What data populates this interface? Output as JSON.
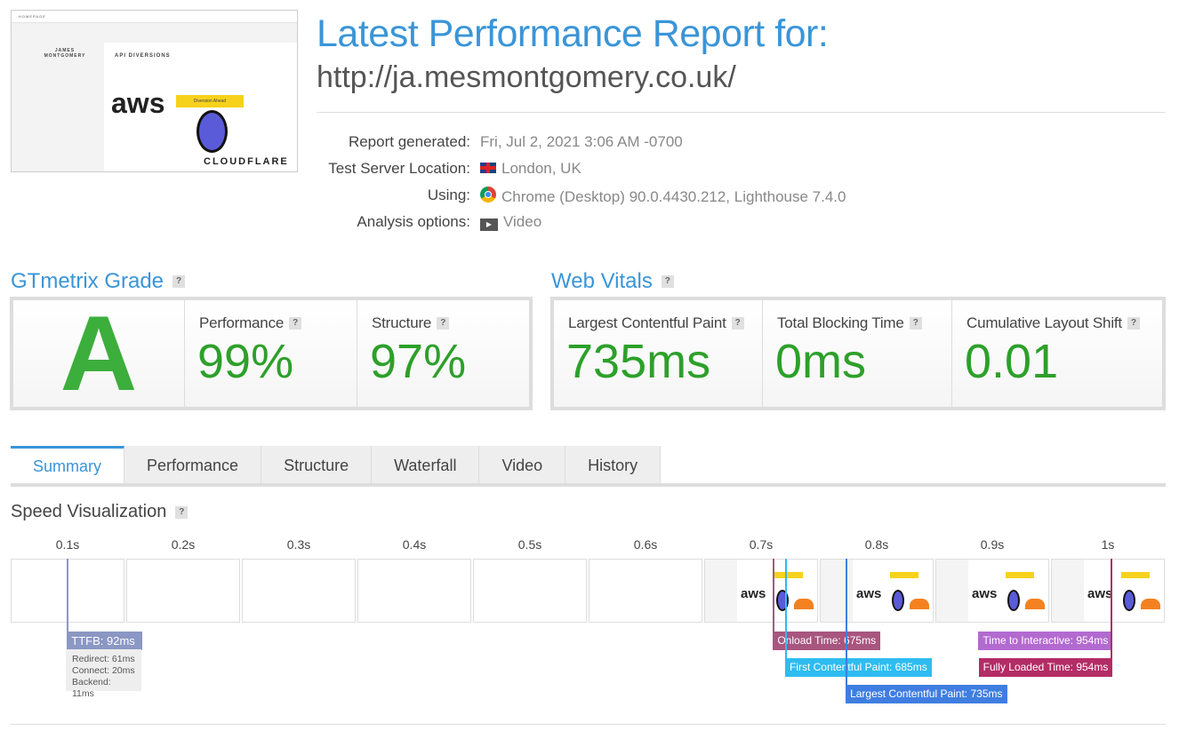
{
  "screenshot": {
    "nav": "HOMEPAGE",
    "author": "JAMES MONTGOMERY",
    "post_title": "API DIVERSIONS",
    "sign": "Diversion Ahead",
    "logo1": "aws",
    "logo2": "CLOUDFLARE"
  },
  "report": {
    "title": "Latest Performance Report for:",
    "url": "http://ja.mesmontgomery.co.uk/",
    "rows": [
      {
        "label": "Report generated:",
        "value": "Fri, Jul 2, 2021 3:06 AM -0700",
        "icon": ""
      },
      {
        "label": "Test Server Location:",
        "value": "London, UK",
        "icon": "uk-flag-icon"
      },
      {
        "label": "Using:",
        "value": "Chrome (Desktop) 90.0.4430.212, Lighthouse 7.4.0",
        "icon": "chrome-icon"
      },
      {
        "label": "Analysis options:",
        "value": "Video",
        "icon": "video-icon"
      }
    ]
  },
  "grade": {
    "title": "GTmetrix Grade",
    "help": "?",
    "letter": "A",
    "performance_label": "Performance",
    "performance": "99%",
    "structure_label": "Structure",
    "structure": "97%"
  },
  "vitals": {
    "title": "Web Vitals",
    "help": "?",
    "lcp_label": "Largest Contentful Paint",
    "lcp": "735ms",
    "tbt_label": "Total Blocking Time",
    "tbt": "0ms",
    "cls_label": "Cumulative Layout Shift",
    "cls": "0.01"
  },
  "tabs": [
    "Summary",
    "Performance",
    "Structure",
    "Waterfall",
    "Video",
    "History"
  ],
  "speed": {
    "title": "Speed Visualization",
    "help": "?",
    "ticks": [
      "0.1s",
      "0.2s",
      "0.3s",
      "0.4s",
      "0.5s",
      "0.6s",
      "0.7s",
      "0.8s",
      "0.9s",
      "1s"
    ],
    "ttfb": {
      "label": "TTFB: 92ms",
      "ms": 92,
      "color": "#8b97c4",
      "details": [
        "Redirect: 61ms",
        "Connect: 20ms",
        "Backend: 11ms"
      ]
    },
    "markers": [
      {
        "label": "Onload Time: 675ms",
        "ms": 675,
        "color": "#a8567f",
        "side": "right",
        "row": 0
      },
      {
        "label": "First Contentful Paint: 685ms",
        "ms": 685,
        "color": "#2ebcf0",
        "side": "right",
        "row": 1
      },
      {
        "label": "Largest Contentful Paint: 735ms",
        "ms": 735,
        "color": "#3f7ee0",
        "side": "right",
        "row": 2
      },
      {
        "label": "Time to Interactive: 954ms",
        "ms": 954,
        "color": "#b36ad0",
        "side": "left",
        "row": 0
      },
      {
        "label": "Fully Loaded Time: 954ms",
        "ms": 954,
        "color": "#b42c66",
        "side": "left",
        "row": 1
      }
    ]
  }
}
